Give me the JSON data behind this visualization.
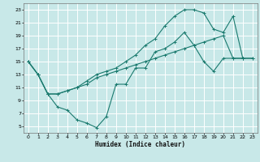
{
  "title": "",
  "xlabel": "Humidex (Indice chaleur)",
  "bg_color": "#c8e8e8",
  "line_color": "#1a7a6e",
  "grid_color": "#ffffff",
  "xlim": [
    -0.5,
    23.5
  ],
  "ylim": [
    4,
    24
  ],
  "xticks": [
    0,
    1,
    2,
    3,
    4,
    5,
    6,
    7,
    8,
    9,
    10,
    11,
    12,
    13,
    14,
    15,
    16,
    17,
    18,
    19,
    20,
    21,
    22,
    23
  ],
  "yticks": [
    5,
    7,
    9,
    11,
    13,
    15,
    17,
    19,
    21,
    23
  ],
  "line1_x": [
    0,
    1,
    2,
    3,
    4,
    5,
    6,
    7,
    8,
    9,
    10,
    11,
    12,
    13,
    14,
    15,
    16,
    17,
    18,
    19,
    20,
    21,
    22,
    23
  ],
  "line1_y": [
    15.0,
    13.0,
    10.0,
    8.0,
    7.5,
    6.0,
    5.5,
    4.8,
    6.5,
    11.5,
    11.5,
    14.0,
    14.0,
    16.5,
    17.0,
    18.0,
    19.5,
    17.5,
    15.0,
    13.5,
    15.5,
    15.5,
    15.5,
    null
  ],
  "line2_x": [
    0,
    1,
    2,
    3,
    4,
    5,
    6,
    7,
    8,
    9,
    10,
    11,
    12,
    13,
    14,
    15,
    16,
    17,
    18,
    19,
    20,
    21,
    22,
    23
  ],
  "line2_y": [
    15.0,
    13.0,
    10.0,
    10.0,
    10.5,
    11.0,
    12.0,
    13.0,
    13.5,
    14.0,
    15.0,
    16.0,
    17.5,
    18.5,
    20.5,
    22.0,
    23.0,
    23.0,
    22.5,
    20.0,
    19.5,
    22.0,
    15.5,
    15.5
  ],
  "line3_x": [
    0,
    1,
    2,
    3,
    4,
    5,
    6,
    7,
    8,
    9,
    10,
    11,
    12,
    13,
    14,
    15,
    16,
    17,
    18,
    19,
    20,
    21,
    22,
    23
  ],
  "line3_y": [
    15.0,
    13.0,
    10.0,
    10.0,
    10.5,
    11.0,
    11.5,
    12.5,
    13.0,
    13.5,
    14.0,
    14.5,
    15.0,
    15.5,
    16.0,
    16.5,
    17.0,
    17.5,
    18.0,
    18.5,
    19.0,
    15.5,
    15.5,
    15.5
  ]
}
